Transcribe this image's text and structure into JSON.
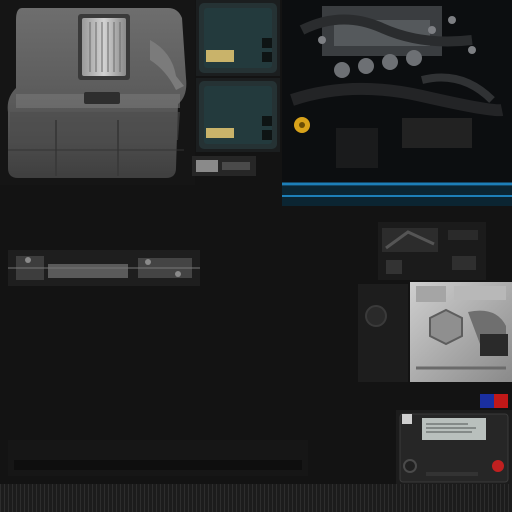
{
  "atlas": {
    "engine_cover": {
      "icon": "engine-cover-icon",
      "panel_text": ""
    },
    "fuse_box_upper": {
      "icon": "fuse-box-icon"
    },
    "fuse_box_lower": {
      "icon": "fuse-box-icon"
    },
    "engine_bay_photo": {
      "icon": "engine-bay-icon",
      "oil_cap_color": "#d8a21a",
      "trim_color": "#1d7fb8"
    },
    "underbody_strip": {
      "icon": "engine-underbody-icon"
    },
    "small_parts_panel": {
      "icon": "small-parts-icon"
    },
    "grey_block": {
      "icon": "engine-block-icon"
    },
    "battery": {
      "icon": "battery-icon",
      "label_text": "",
      "negative_terminal_color": "#202020",
      "positive_terminal_color": "#c02020",
      "flag_colors": [
        "#1a2fa0",
        "#c01818"
      ]
    },
    "ribbed_strip": {
      "icon": "ribbed-strip-icon"
    }
  }
}
